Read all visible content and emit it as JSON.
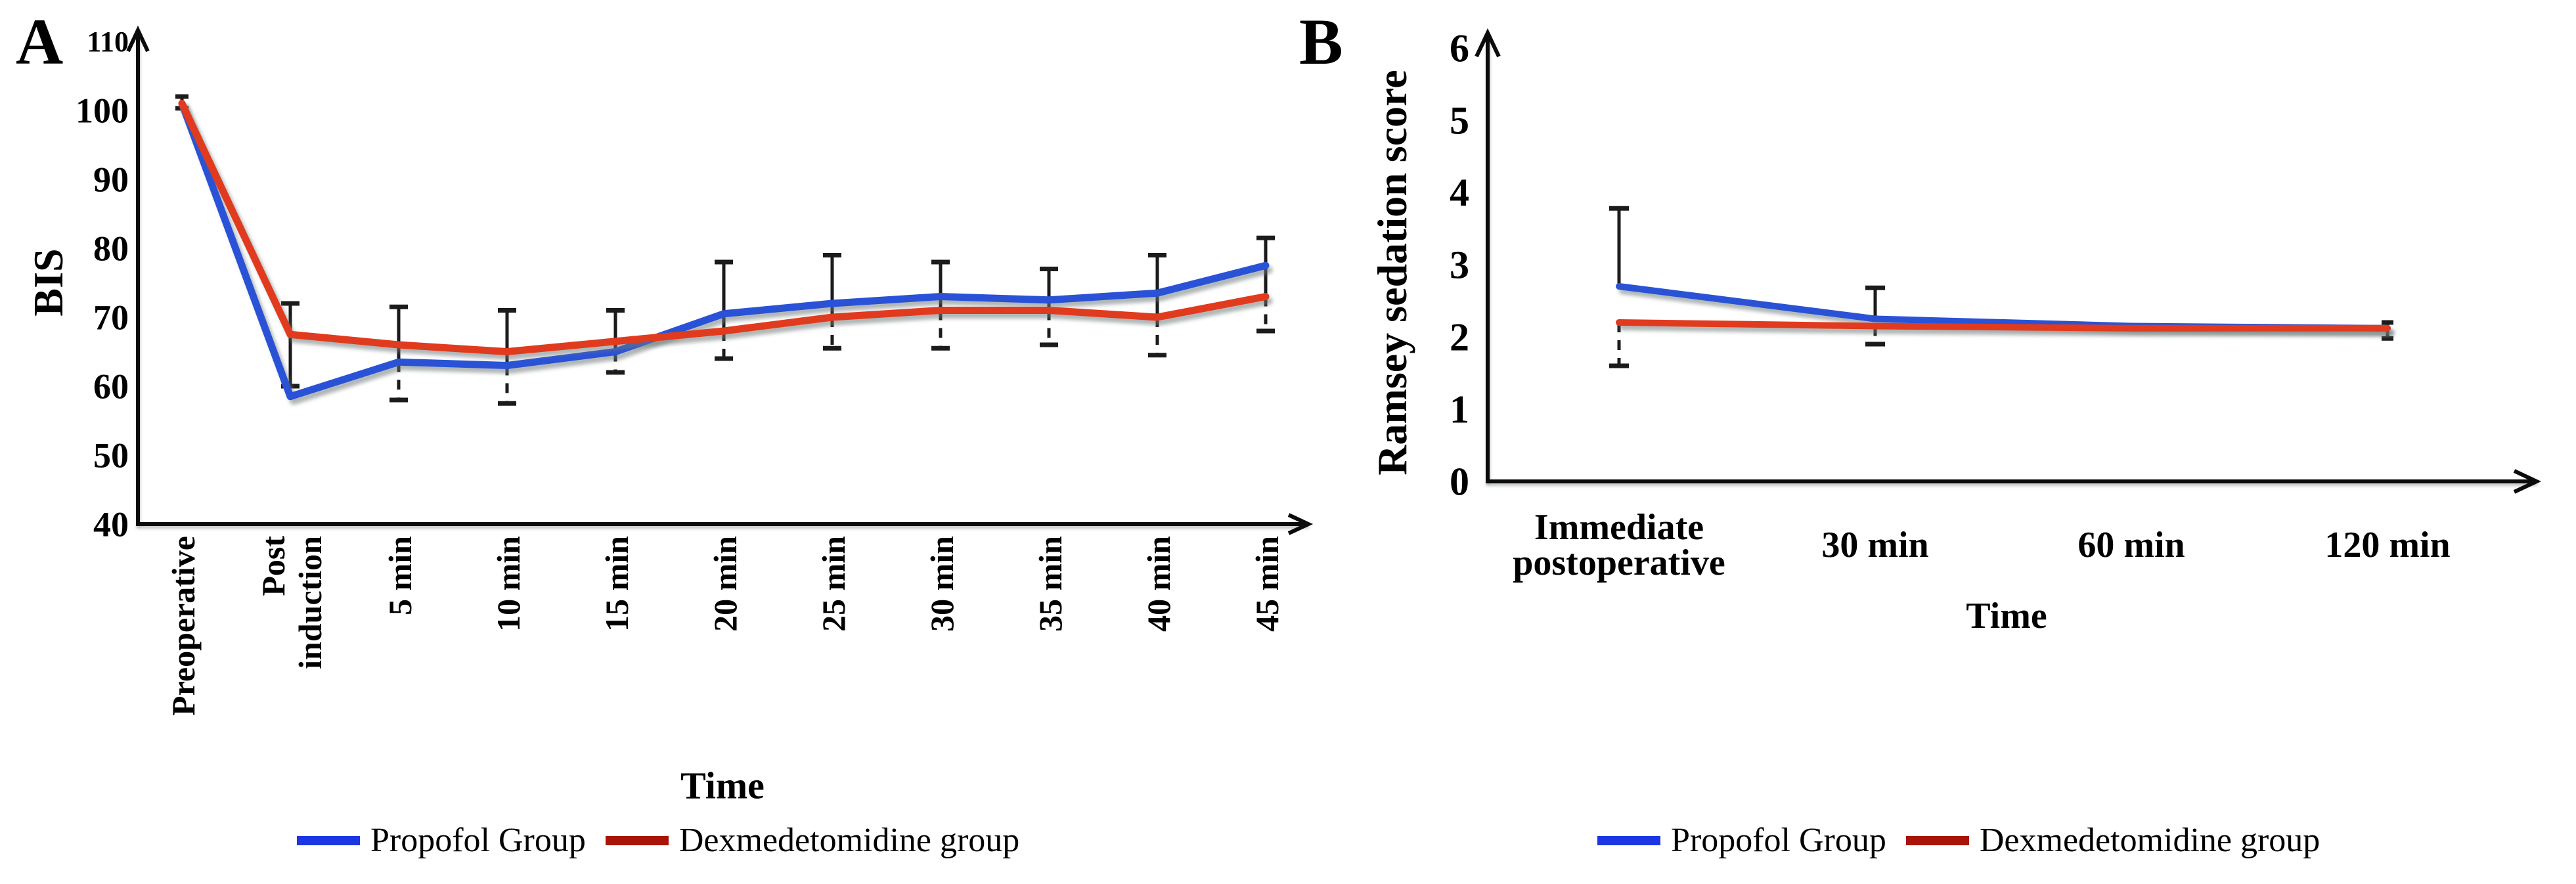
{
  "colors": {
    "background": "#ffffff",
    "axis": "#0b0b0b",
    "error_bar": "#1b1b1b",
    "propofol_blue": "#2a52d6",
    "propofol_legend_swatch": "#1d36e4",
    "dexmedetomidine_red": "#e03b1e",
    "dexmedetomidine_legend_swatch": "#a81508"
  },
  "chart_data": [
    {
      "type": "line",
      "panel_label": "A",
      "ylabel": "BIS",
      "xlabel": "Time",
      "ylim": [
        40,
        110
      ],
      "yticks": [
        40,
        50,
        60,
        70,
        80,
        90,
        100,
        110
      ],
      "grid": "off",
      "legend_position": "bottom",
      "categories": [
        "Preoperative",
        "Post\ninduction",
        "5 min",
        "10 min",
        "15 min",
        "20 min",
        "25 min",
        "30 min",
        "35 min",
        "40 min",
        "45 min"
      ],
      "series": [
        {
          "name": "Propofol Group",
          "color": "#2a52d6",
          "legend_swatch_color": "#1d36e4",
          "values": [
            101,
            58.5,
            63.5,
            63,
            65,
            70.5,
            72,
            73,
            72.5,
            73.5,
            77.5
          ]
        },
        {
          "name": "Dexmedetomidine group",
          "color": "#e03b1e",
          "legend_swatch_color": "#a81508",
          "values": [
            101,
            67.5,
            66,
            65,
            66.5,
            68,
            70,
            71,
            71,
            70,
            73
          ]
        }
      ],
      "error_bars": [
        {
          "top": 102,
          "solid_to": 100.3,
          "dash_from": 100.3,
          "bottom": 100.3,
          "cap_half": 10
        },
        {
          "top": 72,
          "solid_to": 60,
          "dash_from": 60,
          "bottom": 60
        },
        {
          "top": 71.5,
          "solid_to": 63.5,
          "dash_from": 63.5,
          "bottom": 58
        },
        {
          "top": 71,
          "solid_to": 63,
          "dash_from": 63,
          "bottom": 57.5
        },
        {
          "top": 71,
          "solid_to": 65,
          "dash_from": 65,
          "bottom": 62
        },
        {
          "top": 78,
          "solid_to": 68,
          "dash_from": 68,
          "bottom": 64
        },
        {
          "top": 79,
          "solid_to": 70,
          "dash_from": 70,
          "bottom": 65.5
        },
        {
          "top": 78,
          "solid_to": 71,
          "dash_from": 71,
          "bottom": 65.5
        },
        {
          "top": 77,
          "solid_to": 71,
          "dash_from": 71,
          "bottom": 66
        },
        {
          "top": 79,
          "solid_to": 70,
          "dash_from": 70,
          "bottom": 64.5
        },
        {
          "top": 81.5,
          "solid_to": 73,
          "dash_from": 73,
          "bottom": 68
        }
      ]
    },
    {
      "type": "line",
      "panel_label": "B",
      "ylabel": "Ramsey sedation score",
      "xlabel": "Time",
      "ylim": [
        0,
        6
      ],
      "yticks": [
        0,
        1,
        2,
        3,
        4,
        5,
        6
      ],
      "grid": "off",
      "legend_position": "bottom",
      "categories": [
        "Immediate\npostoperative",
        "30 min",
        "60 min",
        "120 min"
      ],
      "series": [
        {
          "name": "Propofol Group",
          "color": "#2a52d6",
          "legend_swatch_color": "#1d36e4",
          "values": [
            2.7,
            2.25,
            2.15,
            2.12
          ]
        },
        {
          "name": "Dexmedetomidine group",
          "color": "#e03b1e",
          "legend_swatch_color": "#a81508",
          "values": [
            2.2,
            2.15,
            2.12,
            2.12
          ]
        }
      ],
      "error_bars": [
        {
          "top": 3.78,
          "solid_to": 2.7,
          "dash_from": 2.2,
          "bottom": 1.6
        },
        {
          "top": 2.68,
          "solid_to": 2.25,
          "dash_from": 2.15,
          "bottom": 1.9
        },
        null,
        {
          "top": 2.2,
          "solid_to": 2.12,
          "dash_from": 2.12,
          "bottom": 1.98,
          "cap_half": 9
        }
      ]
    }
  ]
}
